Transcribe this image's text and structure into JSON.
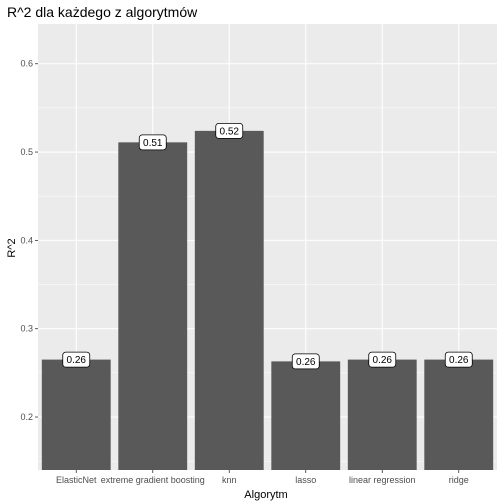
{
  "chart_data": {
    "type": "bar",
    "title": "R^2 dla każdego z algorytmów",
    "xlabel": "Algorytm",
    "ylabel": "R^2",
    "categories": [
      "ElasticNet",
      "extreme gradient boosting",
      "knn",
      "lasso",
      "linear regression",
      "ridge"
    ],
    "values": [
      0.265,
      0.511,
      0.524,
      0.263,
      0.265,
      0.265
    ],
    "data_labels": [
      "0.26",
      "0.51",
      "0.52",
      "0.26",
      "0.26",
      "0.26"
    ],
    "ylim": [
      0.14,
      0.645
    ],
    "yticks": [
      0.2,
      0.3,
      0.4,
      0.5,
      0.6
    ],
    "ytick_labels": [
      "0.2",
      "0.3",
      "0.4",
      "0.5",
      "0.6"
    ],
    "grid": true,
    "legend": "none",
    "colors": {
      "panel": "#ebebeb",
      "grid_major": "#ffffff",
      "bar": "#595959",
      "label_fill": "#ffffff",
      "label_border": "#000000"
    }
  }
}
